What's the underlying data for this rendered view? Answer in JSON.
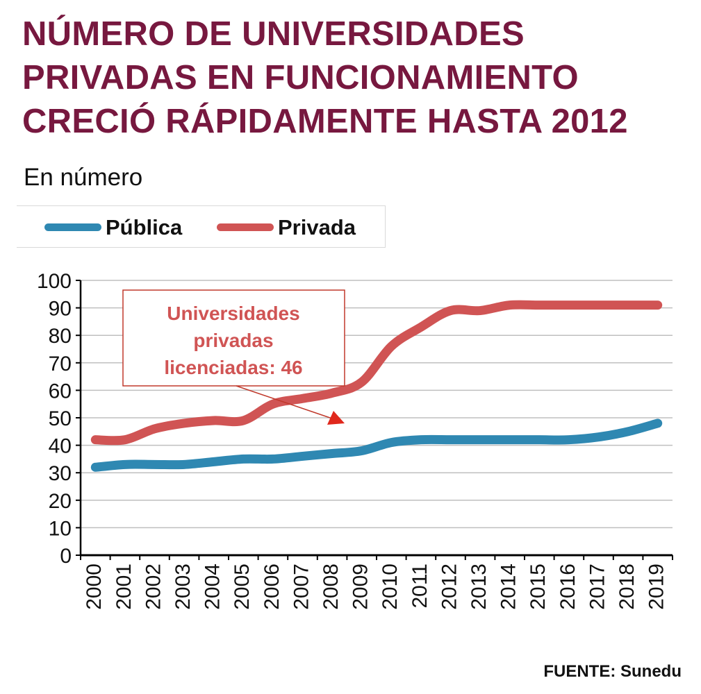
{
  "title": "NÚMERO DE UNIVERSIDADES PRIVADAS EN FUNCIONAMIENTO CRECIÓ RÁPIDAMENTE HASTA 2012",
  "subtitle": "En número",
  "source": "FUENTE: Sunedu",
  "colors": {
    "title": "#77183f",
    "publica": "#2f88b2",
    "privada": "#d05454",
    "annotation_border": "#c0392b",
    "annotation_text": "#d05454",
    "grid": "#bfbfbf"
  },
  "legend": [
    {
      "label": "Pública",
      "color": "#2f88b2"
    },
    {
      "label": "Privada",
      "color": "#d05454"
    }
  ],
  "chart_data": {
    "type": "line",
    "x": [
      "2000",
      "2001",
      "2002",
      "2003",
      "2004",
      "2005",
      "2006",
      "2007",
      "2008",
      "2009",
      "2010",
      "2011",
      "2012",
      "2013",
      "2014",
      "2015",
      "2016",
      "2017",
      "2018",
      "2019"
    ],
    "series": [
      {
        "name": "Pública",
        "values": [
          32,
          33,
          33,
          33,
          34,
          35,
          35,
          36,
          37,
          38,
          41,
          42,
          42,
          42,
          42,
          42,
          42,
          43,
          45,
          48
        ]
      },
      {
        "name": "Privada",
        "values": [
          42,
          42,
          46,
          48,
          49,
          49,
          55,
          57,
          59,
          63,
          76,
          83,
          89,
          89,
          91,
          91,
          91,
          91,
          91,
          91
        ]
      }
    ],
    "ylim": [
      0,
      100
    ],
    "yticks": [
      "0",
      "10",
      "20",
      "30",
      "40",
      "50",
      "60",
      "70",
      "80",
      "90",
      "100"
    ],
    "grid": true,
    "legend_placement": "top-left",
    "annotation": {
      "lines": [
        "Universidades",
        "privadas",
        "licenciadas: 46"
      ]
    }
  }
}
